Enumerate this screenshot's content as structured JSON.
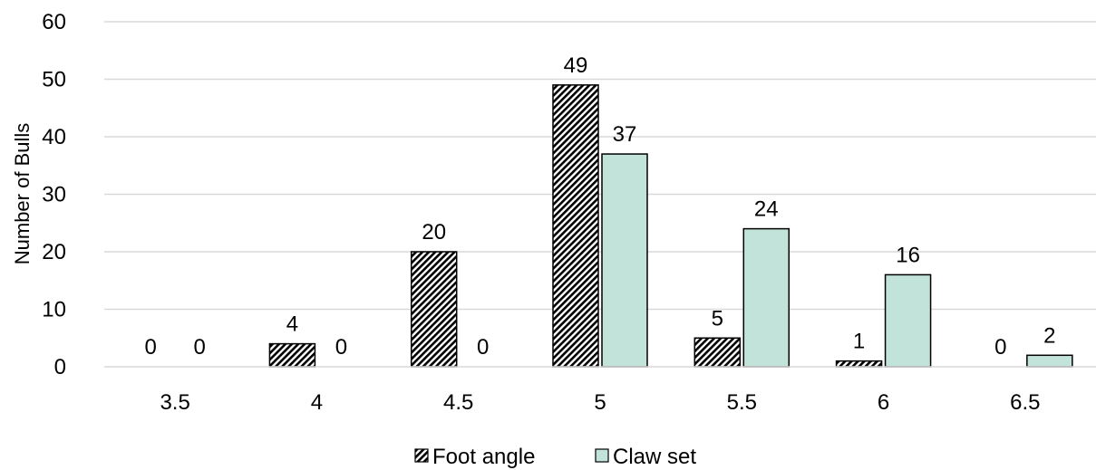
{
  "chart_data": {
    "type": "bar",
    "categories": [
      "3.5",
      "4",
      "4.5",
      "5",
      "5.5",
      "6",
      "6.5"
    ],
    "series": [
      {
        "name": "Foot angle",
        "values": [
          0,
          4,
          20,
          49,
          5,
          1,
          0
        ],
        "pattern": "diagonal-hatch",
        "color": "#000000"
      },
      {
        "name": "Claw set",
        "values": [
          0,
          0,
          0,
          37,
          24,
          16,
          2
        ],
        "color": "#c2e3d9"
      }
    ],
    "ylabel": "Number of Bulls",
    "ylim": [
      0,
      60
    ],
    "yticks": [
      "0",
      "10",
      "20",
      "30",
      "40",
      "50",
      "60"
    ],
    "grid": "horizontal",
    "legend_position": "bottom"
  }
}
